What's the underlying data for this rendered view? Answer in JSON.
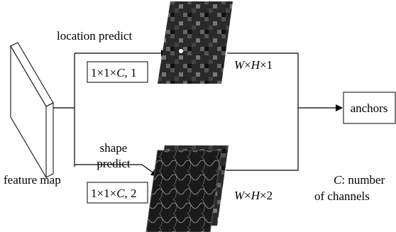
{
  "labels": {
    "location_predict": "location predict",
    "conv1": [
      "1×1×",
      "C",
      ", 1"
    ],
    "out1": [
      "W",
      "×",
      "H",
      "×1"
    ],
    "anchors": "anchors",
    "shape_predict": [
      "shape",
      "predict"
    ],
    "feature_map": "feature map",
    "conv2": [
      "1×1×",
      "C",
      ", 2"
    ],
    "out2": [
      "W",
      "×",
      "H",
      "×2"
    ],
    "note": [
      [
        "C",
        ": number"
      ],
      "of channels"
    ]
  }
}
